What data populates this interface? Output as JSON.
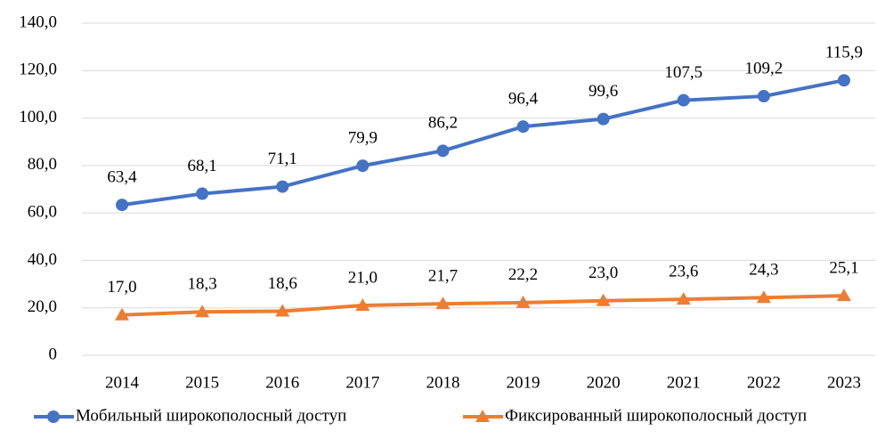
{
  "chart_data": {
    "type": "line",
    "categories": [
      "2014",
      "2015",
      "2016",
      "2017",
      "2018",
      "2019",
      "2020",
      "2021",
      "2022",
      "2023"
    ],
    "series": [
      {
        "name": "Мобильный широкополосный доступ",
        "color": "#4472c4",
        "marker": "circle",
        "values": [
          63.4,
          68.1,
          71.1,
          79.9,
          86.2,
          96.4,
          99.6,
          107.5,
          109.2,
          115.9
        ],
        "value_labels": [
          "63,4",
          "68,1",
          "71,1",
          "79,9",
          "86,2",
          "96,4",
          "99,6",
          "107,5",
          "109,2",
          "115,9"
        ]
      },
      {
        "name": "Фиксированный широкополосный доступ",
        "color": "#ed7d31",
        "marker": "triangle",
        "values": [
          17.0,
          18.3,
          18.6,
          21.0,
          21.7,
          22.2,
          23.0,
          23.6,
          24.3,
          25.1
        ],
        "value_labels": [
          "17,0",
          "18,3",
          "18,6",
          "21,0",
          "21,7",
          "22,2",
          "23,0",
          "23,6",
          "24,3",
          "25,1"
        ]
      }
    ],
    "ylim": [
      0,
      140
    ],
    "yticks": [
      0,
      {
        "value": 20,
        "label": "20,0"
      },
      {
        "value": 40,
        "label": "40,0"
      },
      {
        "value": 60,
        "label": "60,0"
      },
      {
        "value": 80,
        "label": "80,0"
      },
      {
        "value": 100,
        "label": "100,0"
      },
      {
        "value": 120,
        "label": "120,0"
      },
      {
        "value": 140,
        "label": "140,0"
      }
    ],
    "grid": true,
    "legend": "bottom"
  }
}
